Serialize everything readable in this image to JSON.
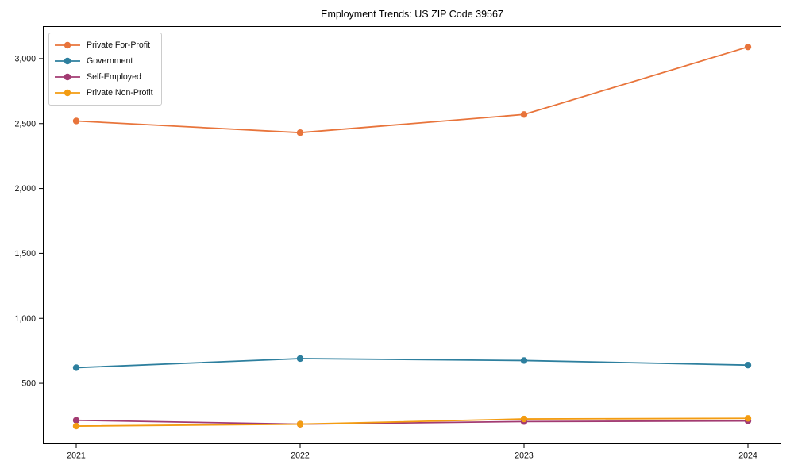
{
  "chart_data": {
    "type": "line",
    "title": "Employment Trends: US ZIP Code 39567",
    "x": [
      "2021",
      "2022",
      "2023",
      "2024"
    ],
    "series": [
      {
        "name": "Private For-Profit",
        "color": "#E8743B",
        "values": [
          2520,
          2430,
          2570,
          3090
        ]
      },
      {
        "name": "Government",
        "color": "#2D7F9E",
        "values": [
          620,
          690,
          675,
          640
        ]
      },
      {
        "name": "Self-Employed",
        "color": "#A23B72",
        "values": [
          215,
          185,
          205,
          210
        ]
      },
      {
        "name": "Private Non-Profit",
        "color": "#F39C12",
        "values": [
          170,
          185,
          225,
          230
        ]
      }
    ],
    "xlabel": "",
    "ylabel": "",
    "ylim": [
      30,
      3250
    ],
    "yticks": [
      500,
      1000,
      1500,
      2000,
      2500,
      3000
    ],
    "grid": false,
    "legend_position": "upper-left",
    "marker": "circle",
    "frame_color": "#000000"
  }
}
